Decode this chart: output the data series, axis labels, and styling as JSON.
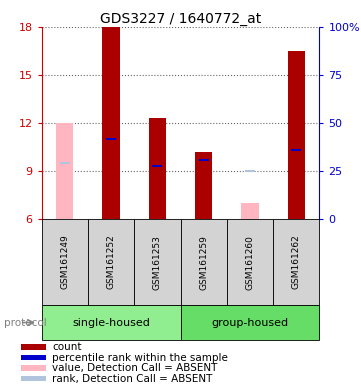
{
  "title": "GDS3227 / 1640772_at",
  "samples": [
    "GSM161249",
    "GSM161252",
    "GSM161253",
    "GSM161259",
    "GSM161260",
    "GSM161262"
  ],
  "count_values": [
    null,
    18.0,
    12.3,
    10.2,
    null,
    16.5
  ],
  "count_color": "#AA0000",
  "rank_values": [
    null,
    11.0,
    9.3,
    9.7,
    null,
    10.3
  ],
  "rank_color": "#0000CC",
  "absent_value_values": [
    12.0,
    null,
    null,
    null,
    7.0,
    null
  ],
  "absent_value_color": "#FFB6C1",
  "absent_rank_values": [
    9.5,
    null,
    null,
    null,
    9.0,
    null
  ],
  "absent_rank_color": "#B0C4DE",
  "ylim_left": [
    6,
    18
  ],
  "left_ticks": [
    6,
    9,
    12,
    15,
    18
  ],
  "left_tick_labels": [
    "6",
    "9",
    "12",
    "15",
    "18"
  ],
  "right_ticks": [
    0,
    25,
    50,
    75,
    100
  ],
  "right_tick_labels": [
    "0",
    "25",
    "50",
    "75",
    "100%"
  ],
  "left_axis_color": "#CC0000",
  "right_axis_color": "#0000CC",
  "group_info": [
    {
      "start": 0,
      "end": 2,
      "label": "single-housed",
      "color": "#90EE90"
    },
    {
      "start": 3,
      "end": 5,
      "label": "group-housed",
      "color": "#66DD66"
    }
  ],
  "label_area_color": "#D3D3D3",
  "legend_colors": [
    "#AA0000",
    "#0000CC",
    "#FFB6C1",
    "#B0C4DE"
  ],
  "legend_labels": [
    "count",
    "percentile rank within the sample",
    "value, Detection Call = ABSENT",
    "rank, Detection Call = ABSENT"
  ],
  "font_size_title": 10,
  "font_size_ticks": 8,
  "font_size_sample": 6.5,
  "font_size_group": 8,
  "font_size_legend": 7.5
}
